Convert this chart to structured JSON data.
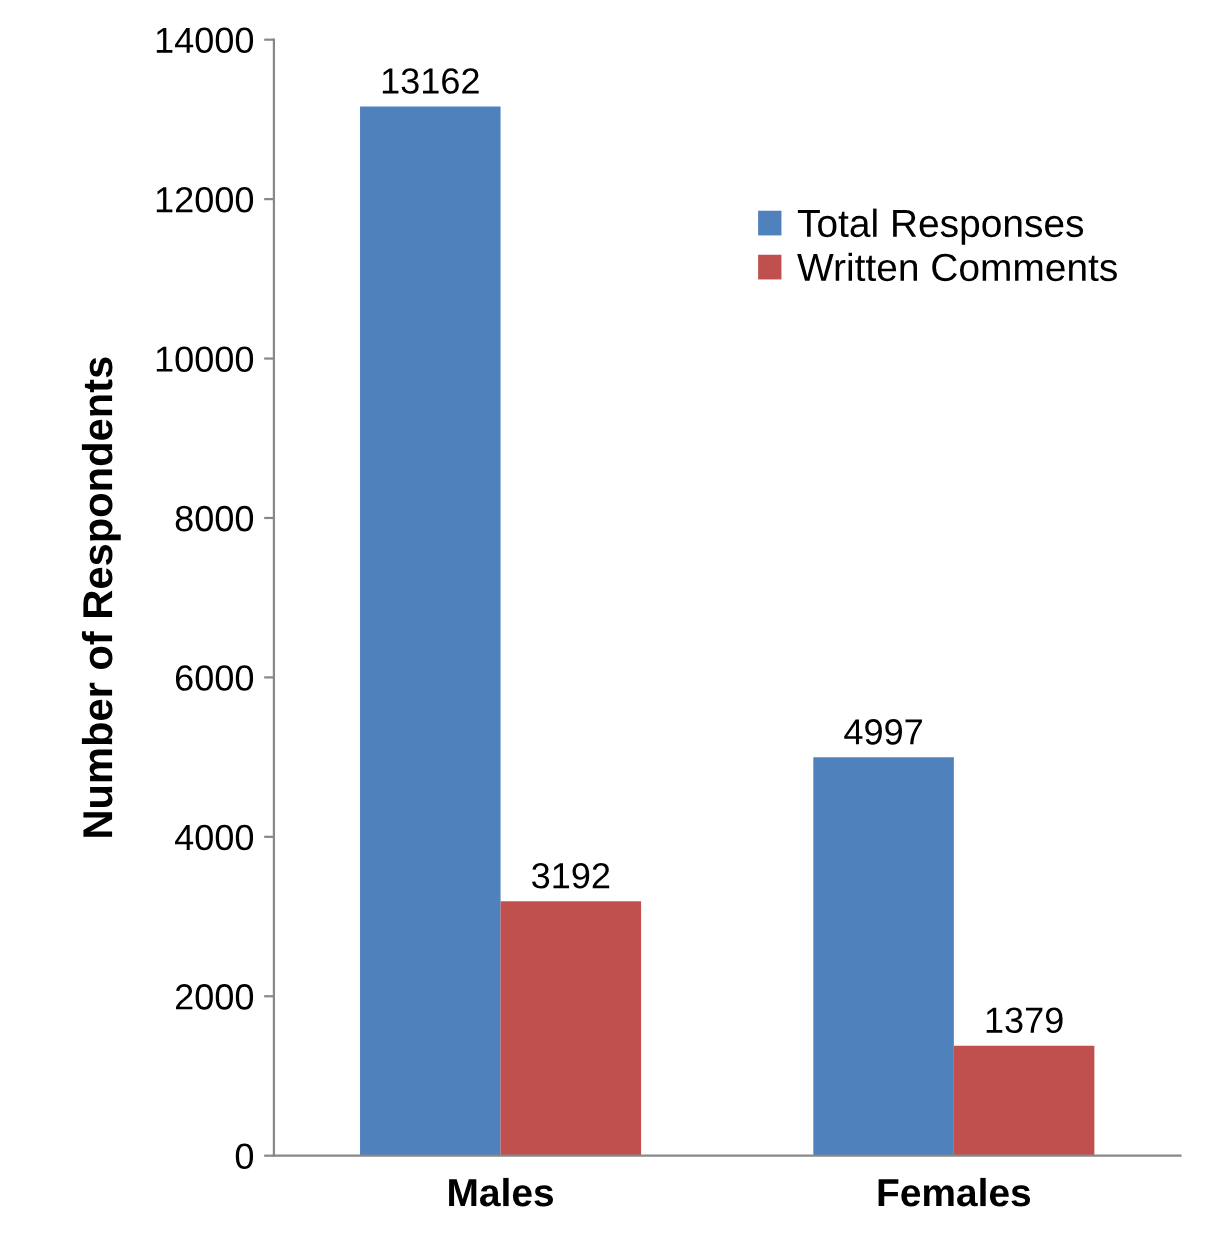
{
  "chart_data": {
    "type": "bar",
    "ylabel": "Number of Respondents",
    "categories": [
      "Males",
      "Females"
    ],
    "series": [
      {
        "name": "Total Responses",
        "color": "#4f81bd",
        "values": [
          13162,
          4997
        ]
      },
      {
        "name": "Written Comments",
        "color": "#c0504d",
        "values": [
          3192,
          1379
        ]
      }
    ],
    "ylim": [
      0,
      14000
    ],
    "yticks": [
      0,
      2000,
      4000,
      6000,
      8000,
      10000,
      12000,
      14000
    ],
    "grid": false,
    "legend": "top right",
    "data_labels": true
  }
}
